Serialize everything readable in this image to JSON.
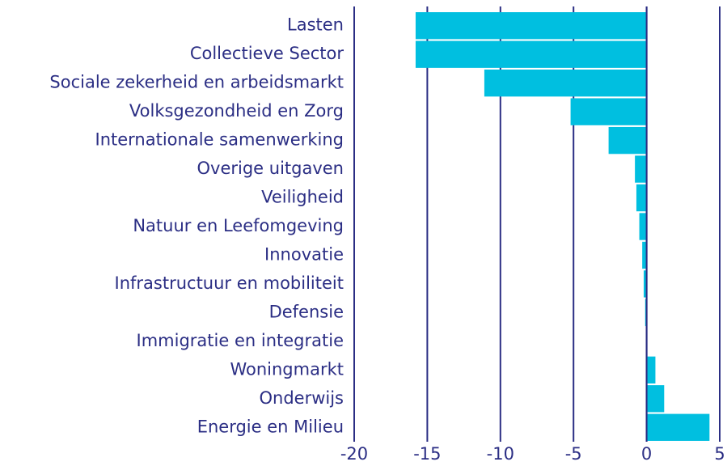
{
  "chart_data": {
    "type": "barh",
    "categories": [
      "Lasten",
      "Collectieve Sector",
      "Sociale zekerheid en arbeidsmarkt",
      "Volksgezondheid en Zorg",
      "Internationale samenwerking",
      "Overige uitgaven",
      "Veiligheid",
      "Natuur en Leefomgeving",
      "Innovatie",
      "Infrastructuur en mobiliteit",
      "Defensie",
      "Immigratie en integratie",
      "Woningmarkt",
      "Onderwijs",
      "Energie en Milieu"
    ],
    "values": [
      -15.8,
      -15.8,
      -11.1,
      -5.2,
      -2.6,
      -0.8,
      -0.7,
      -0.5,
      -0.3,
      -0.2,
      -0.1,
      0,
      0.6,
      1.2,
      4.3
    ],
    "color": "#00bfe0",
    "xlim": [
      -20,
      5
    ],
    "xticks": [
      -20,
      -15,
      -10,
      -5,
      0,
      5
    ],
    "grid": true
  }
}
